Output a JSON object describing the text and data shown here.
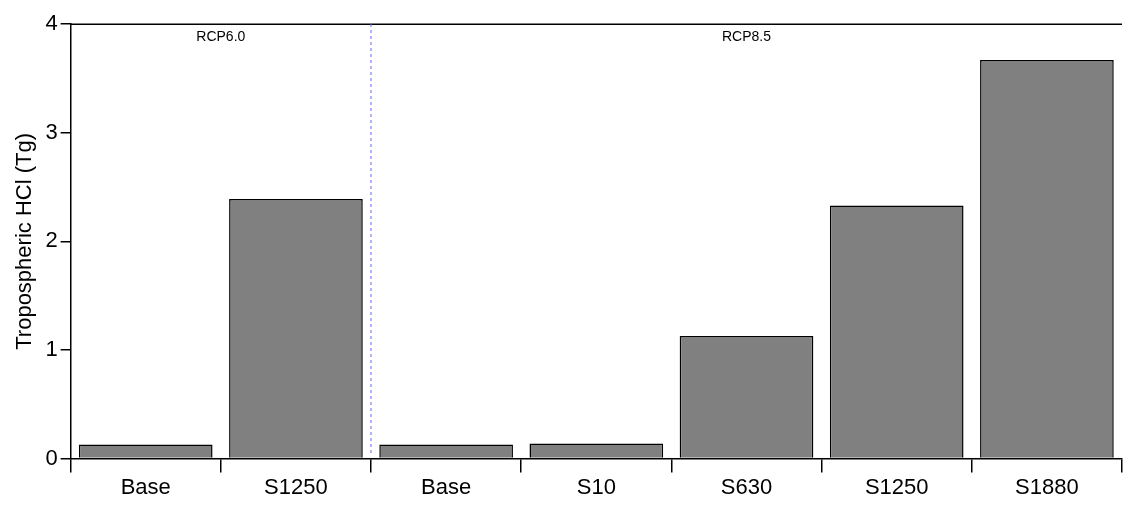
{
  "chart_data": {
    "type": "bar",
    "ylabel": "Tropospheric HCl (Tg)",
    "categories": [
      "Base",
      "S1250",
      "Base",
      "S10",
      "S630",
      "S1250",
      "S1880"
    ],
    "values": [
      0.13,
      2.39,
      0.13,
      0.14,
      1.13,
      2.33,
      3.67
    ],
    "color": "#808080",
    "ylim": [
      0,
      4
    ],
    "yticks": [
      0,
      1,
      2,
      3,
      4
    ],
    "grid": false,
    "legend": false,
    "annotations": [
      "RCP6.0",
      "RCP8.5"
    ]
  }
}
